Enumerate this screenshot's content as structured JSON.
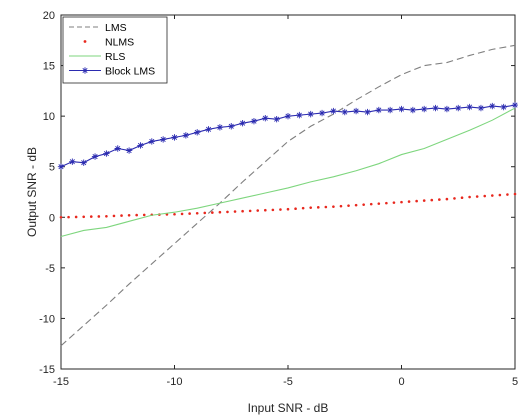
{
  "chart_data": {
    "type": "line",
    "xlabel": "Input SNR - dB",
    "ylabel": "Output SNR - dB",
    "xlim": [
      -15,
      5
    ],
    "ylim": [
      -15,
      20
    ],
    "xticks": [
      -15,
      -10,
      -5,
      0,
      5
    ],
    "yticks": [
      -15,
      -10,
      -5,
      0,
      5,
      10,
      15,
      20
    ],
    "grid": false,
    "legend_position": "top-left",
    "series": [
      {
        "name": "LMS",
        "color": "#7f7f7f",
        "style": "dashed",
        "x": [
          -15,
          -14,
          -13,
          -12,
          -11,
          -10,
          -9,
          -8,
          -7,
          -6,
          -5,
          -4,
          -3,
          -2,
          -1,
          0,
          1,
          2,
          3,
          4,
          5
        ],
        "y": [
          -12.7,
          -10.7,
          -8.7,
          -6.6,
          -4.6,
          -2.6,
          -0.6,
          1.4,
          3.5,
          5.5,
          7.5,
          9.0,
          10.2,
          11.6,
          12.9,
          14.1,
          15.0,
          15.3,
          16.0,
          16.6,
          17.0
        ]
      },
      {
        "name": "NLMS",
        "color": "#e8281e",
        "style": "dotted",
        "x": [
          -15,
          -14,
          -13,
          -12,
          -11,
          -10,
          -9,
          -8,
          -7,
          -6,
          -5,
          -4,
          -3,
          -2,
          -1,
          0,
          1,
          2,
          3,
          4,
          5
        ],
        "y": [
          0.0,
          0.05,
          0.1,
          0.2,
          0.25,
          0.3,
          0.4,
          0.5,
          0.6,
          0.7,
          0.8,
          0.95,
          1.05,
          1.2,
          1.35,
          1.5,
          1.65,
          1.8,
          2.0,
          2.15,
          2.3
        ]
      },
      {
        "name": "RLS",
        "color": "#7ed67e",
        "style": "solid",
        "x": [
          -15,
          -14,
          -13,
          -12,
          -11,
          -10,
          -9,
          -8,
          -7,
          -6,
          -5,
          -4,
          -3,
          -2,
          -1,
          0,
          1,
          2,
          3,
          4,
          5
        ],
        "y": [
          -1.9,
          -1.3,
          -1.0,
          -0.4,
          0.2,
          0.5,
          0.9,
          1.4,
          1.9,
          2.4,
          2.9,
          3.5,
          4.0,
          4.6,
          5.3,
          6.2,
          6.8,
          7.7,
          8.6,
          9.6,
          10.8
        ]
      },
      {
        "name": "Block LMS",
        "color": "#2b2bb0",
        "style": "solid-star",
        "x": [
          -15,
          -14.5,
          -14,
          -13.5,
          -13,
          -12.5,
          -12,
          -11.5,
          -11,
          -10.5,
          -10,
          -9.5,
          -9,
          -8.5,
          -8,
          -7.5,
          -7,
          -6.5,
          -6,
          -5.5,
          -5,
          -4.5,
          -4,
          -3.5,
          -3,
          -2.5,
          -2,
          -1.5,
          -1,
          -0.5,
          0,
          0.5,
          1,
          1.5,
          2,
          2.5,
          3,
          3.5,
          4,
          4.5,
          5
        ],
        "y": [
          5.0,
          5.5,
          5.4,
          6.0,
          6.3,
          6.8,
          6.6,
          7.1,
          7.5,
          7.7,
          7.9,
          8.1,
          8.4,
          8.7,
          8.9,
          9.0,
          9.3,
          9.5,
          9.8,
          9.7,
          10.0,
          10.1,
          10.2,
          10.3,
          10.5,
          10.4,
          10.5,
          10.4,
          10.6,
          10.6,
          10.7,
          10.6,
          10.7,
          10.8,
          10.7,
          10.8,
          10.9,
          10.8,
          11.0,
          10.9,
          11.1
        ]
      }
    ]
  }
}
